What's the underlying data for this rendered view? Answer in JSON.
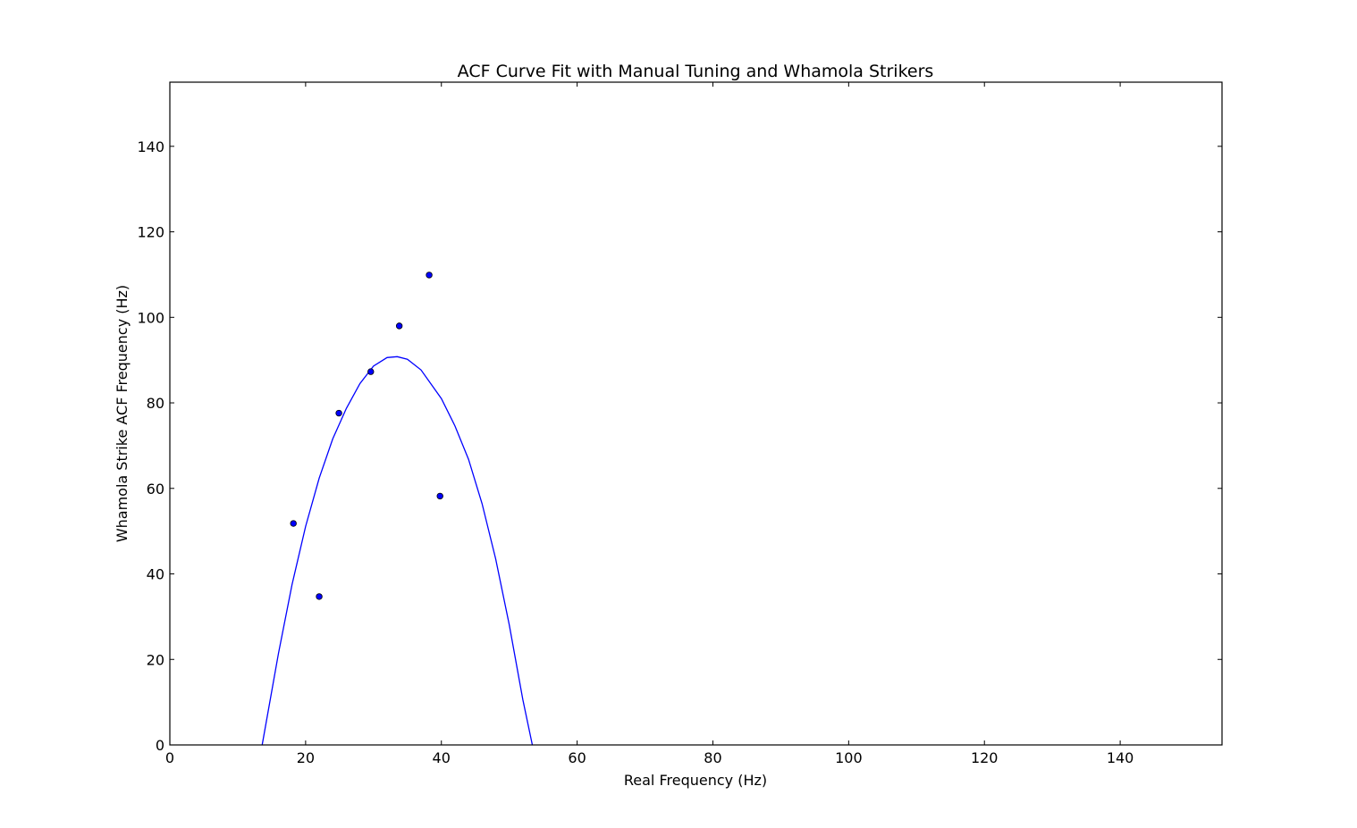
{
  "chart_data": {
    "type": "scatter",
    "title": "ACF Curve Fit with Manual Tuning and Whamola Strikers",
    "xlabel": "Real Frequency (Hz)",
    "ylabel": "Whamola Strike ACF Frequency (Hz)",
    "xlim": [
      0,
      155
    ],
    "ylim": [
      0,
      155
    ],
    "xticks": [
      0,
      20,
      40,
      60,
      80,
      100,
      120,
      140
    ],
    "yticks": [
      0,
      20,
      40,
      60,
      80,
      100,
      120,
      140
    ],
    "grid": false,
    "colors": {
      "points": "#0000ff",
      "curve": "#0000ff",
      "point_edge": "#000000"
    },
    "points": [
      {
        "x": 18.2,
        "y": 51.8
      },
      {
        "x": 22.0,
        "y": 34.7
      },
      {
        "x": 24.9,
        "y": 77.6
      },
      {
        "x": 29.6,
        "y": 87.3
      },
      {
        "x": 33.8,
        "y": 98.0
      },
      {
        "x": 38.2,
        "y": 109.9
      },
      {
        "x": 39.8,
        "y": 58.2
      }
    ],
    "fit_curve": [
      {
        "x": 13.6,
        "y": 0
      },
      {
        "x": 16,
        "y": 21.4
      },
      {
        "x": 18,
        "y": 37.5
      },
      {
        "x": 20,
        "y": 51.1
      },
      {
        "x": 22,
        "y": 62.4
      },
      {
        "x": 24,
        "y": 71.6
      },
      {
        "x": 26,
        "y": 78.7
      },
      {
        "x": 28,
        "y": 84.5
      },
      {
        "x": 30,
        "y": 88.6
      },
      {
        "x": 32,
        "y": 90.6
      },
      {
        "x": 33.5,
        "y": 90.8
      },
      {
        "x": 35,
        "y": 90.2
      },
      {
        "x": 37,
        "y": 87.7
      },
      {
        "x": 40,
        "y": 81.0
      },
      {
        "x": 42,
        "y": 74.6
      },
      {
        "x": 44,
        "y": 66.8
      },
      {
        "x": 46,
        "y": 56.4
      },
      {
        "x": 48,
        "y": 43.5
      },
      {
        "x": 50,
        "y": 28.1
      },
      {
        "x": 52,
        "y": 10.6
      },
      {
        "x": 53.4,
        "y": 0
      }
    ]
  }
}
